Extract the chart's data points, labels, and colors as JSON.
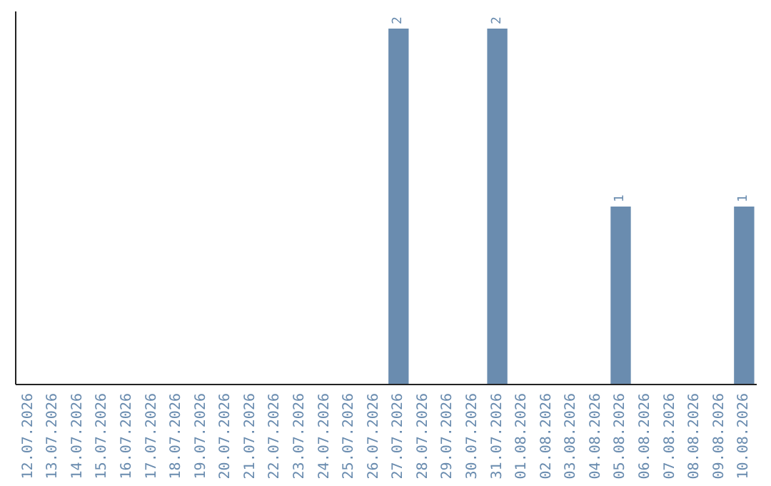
{
  "chart_data": {
    "type": "bar",
    "categories": [
      "12.07.2026",
      "13.07.2026",
      "14.07.2026",
      "15.07.2026",
      "16.07.2026",
      "17.07.2026",
      "18.07.2026",
      "19.07.2026",
      "20.07.2026",
      "21.07.2026",
      "22.07.2026",
      "23.07.2026",
      "24.07.2026",
      "25.07.2026",
      "26.07.2026",
      "27.07.2026",
      "28.07.2026",
      "29.07.2026",
      "30.07.2026",
      "31.07.2026",
      "01.08.2026",
      "02.08.2026",
      "03.08.2026",
      "04.08.2026",
      "05.08.2026",
      "06.08.2026",
      "07.08.2026",
      "08.08.2026",
      "09.08.2026",
      "10.08.2026"
    ],
    "values": [
      null,
      null,
      null,
      null,
      null,
      null,
      null,
      null,
      null,
      null,
      null,
      null,
      null,
      null,
      null,
      2,
      null,
      null,
      null,
      2,
      null,
      null,
      null,
      null,
      1,
      null,
      null,
      null,
      null,
      1
    ],
    "data_labels": true,
    "ylim": [
      0,
      2
    ],
    "color": "#6a8caf",
    "grid": false
  }
}
